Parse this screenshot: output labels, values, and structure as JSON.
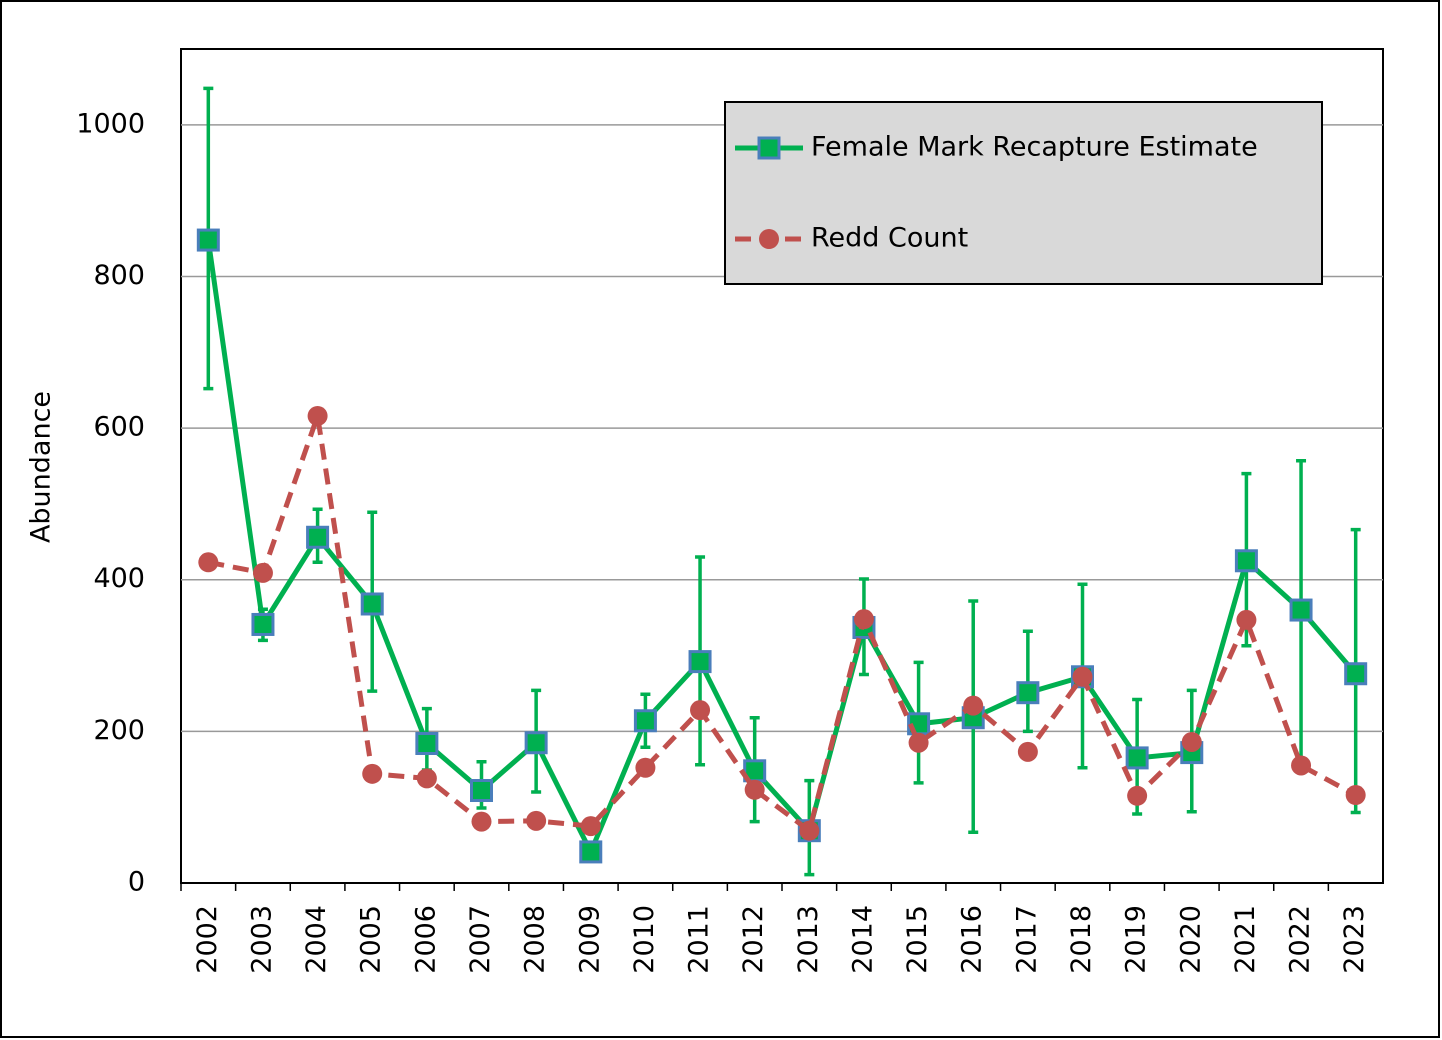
{
  "chart_data": {
    "type": "line",
    "y_label": "Abundance",
    "categories": [
      "2002",
      "2003",
      "2004",
      "2005",
      "2006",
      "2007",
      "2008",
      "2009",
      "2010",
      "2011",
      "2012",
      "2013",
      "2014",
      "2015",
      "2016",
      "2017",
      "2018",
      "2019",
      "2020",
      "2021",
      "2022",
      "2023"
    ],
    "series": [
      {
        "name": "Female Mark Recapture Estimate",
        "color": "#00b050",
        "marker": "square",
        "marker_color": "#4a7ebb",
        "dash": false,
        "values": [
          848,
          341,
          456,
          368,
          184,
          122,
          185,
          41,
          214,
          292,
          148,
          69,
          337,
          210,
          218,
          251,
          272,
          165,
          172,
          425,
          360,
          276
        ],
        "error_low": [
          652,
          320,
          423,
          253,
          149,
          99,
          120,
          null,
          179,
          156,
          81,
          11,
          275,
          132,
          67,
          200,
          152,
          91,
          94,
          313,
          160,
          93
        ],
        "error_high": [
          1048,
          361,
          493,
          489,
          230,
          160,
          254,
          null,
          249,
          430,
          218,
          135,
          401,
          291,
          372,
          332,
          394,
          242,
          254,
          540,
          557,
          466
        ]
      },
      {
        "name": "Redd Count",
        "color": "#c0504d",
        "marker": "circle",
        "marker_color": "#c0504d",
        "dash": true,
        "values": [
          423,
          409,
          616,
          144,
          138,
          81,
          82,
          75,
          152,
          228,
          123,
          69,
          348,
          185,
          234,
          173,
          272,
          115,
          186,
          347,
          155,
          116
        ]
      }
    ],
    "ylim": [
      0,
      1100
    ],
    "yticks": [
      0,
      200,
      400,
      600,
      800,
      1000
    ],
    "grid": true,
    "legend": "upper right"
  }
}
